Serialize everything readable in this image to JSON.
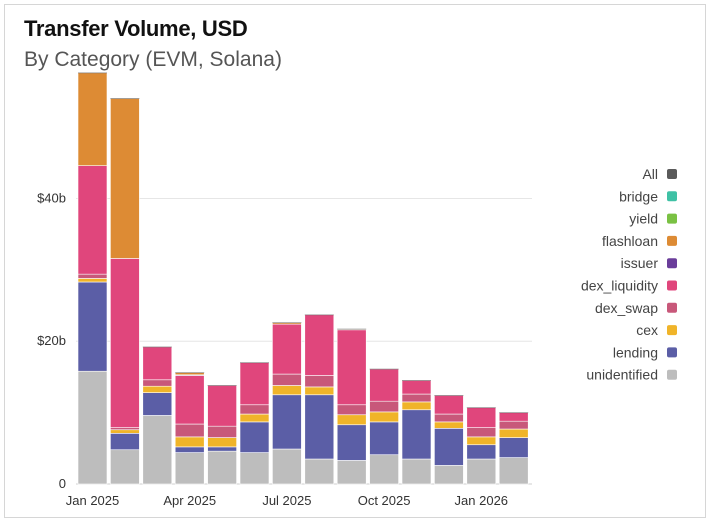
{
  "title": "Transfer Volume, USD",
  "subtitle": "By Category (EVM, Solana)",
  "chart_data": {
    "type": "bar",
    "stacked": true,
    "title": "Transfer Volume, USD",
    "subtitle": "By Category (EVM, Solana)",
    "xlabel": "",
    "ylabel": "",
    "ylim": [
      0,
      58
    ],
    "y_unit": "$ billions",
    "y_ticks": [
      {
        "value": 0,
        "label": "0"
      },
      {
        "value": 20,
        "label": "$20b"
      },
      {
        "value": 40,
        "label": "$40b"
      }
    ],
    "x_ticks": [
      {
        "index": 0,
        "label": "Jan 2025"
      },
      {
        "index": 3,
        "label": "Apr 2025"
      },
      {
        "index": 6,
        "label": "Jul 2025"
      },
      {
        "index": 9,
        "label": "Oct 2025"
      },
      {
        "index": 12,
        "label": "Jan 2026"
      }
    ],
    "categories": [
      "Jan 2025",
      "Feb 2025",
      "Mar 2025",
      "Apr 2025",
      "May 2025",
      "Jun 2025",
      "Jul 2025",
      "Aug 2025",
      "Sep 2025",
      "Oct 2025",
      "Nov 2025",
      "Dec 2025",
      "Jan 2026",
      "Feb 2026"
    ],
    "grid": true,
    "legend_position": "right",
    "series": [
      {
        "name": "unidentified",
        "color": "#bdbdbd",
        "values": [
          15.8,
          4.8,
          9.6,
          4.4,
          4.6,
          4.4,
          4.9,
          3.5,
          3.3,
          4.1,
          3.5,
          2.6,
          3.5,
          3.7
        ]
      },
      {
        "name": "lending",
        "color": "#5b5ea6",
        "values": [
          12.5,
          2.3,
          3.2,
          0.8,
          0.6,
          4.3,
          7.6,
          9.0,
          5.0,
          4.6,
          6.9,
          5.2,
          2.0,
          2.8
        ]
      },
      {
        "name": "cex",
        "color": "#f0b429",
        "values": [
          0.5,
          0.5,
          0.9,
          1.4,
          1.3,
          1.1,
          1.3,
          1.1,
          1.4,
          1.4,
          1.1,
          0.9,
          1.1,
          1.2
        ]
      },
      {
        "name": "dex_swap",
        "color": "#c8587a",
        "values": [
          0.6,
          0.3,
          0.9,
          1.8,
          1.6,
          1.3,
          1.6,
          1.6,
          1.4,
          1.5,
          1.1,
          1.1,
          1.3,
          1.1
        ]
      },
      {
        "name": "dex_liquidity",
        "color": "#e0467c",
        "values": [
          15.2,
          23.7,
          4.6,
          6.8,
          5.7,
          5.9,
          7.0,
          8.5,
          10.5,
          4.5,
          1.9,
          2.6,
          2.8,
          1.2
        ]
      },
      {
        "name": "issuer",
        "color": "#6a3d9a",
        "values": [
          0,
          0,
          0,
          0.1,
          0,
          0,
          0,
          0,
          0,
          0,
          0,
          0,
          0,
          0
        ]
      },
      {
        "name": "flashloan",
        "color": "#dd8b34",
        "values": [
          13.0,
          22.4,
          0,
          0.3,
          0,
          0,
          0.2,
          0,
          0.1,
          0,
          0,
          0,
          0,
          0
        ]
      },
      {
        "name": "yield",
        "color": "#7ac143",
        "values": [
          0,
          0,
          0,
          0,
          0,
          0,
          0,
          0,
          0,
          0,
          0,
          0,
          0,
          0
        ]
      },
      {
        "name": "bridge",
        "color": "#3fc1a5",
        "values": [
          0,
          0,
          0,
          0,
          0,
          0,
          0,
          0,
          0,
          0,
          0,
          0,
          0,
          0
        ]
      }
    ],
    "legend": [
      {
        "label": "All",
        "color": "#5a5a5a"
      },
      {
        "label": "bridge",
        "color": "#3fc1a5"
      },
      {
        "label": "yield",
        "color": "#7ac143"
      },
      {
        "label": "flashloan",
        "color": "#dd8b34"
      },
      {
        "label": "issuer",
        "color": "#6a3d9a"
      },
      {
        "label": "dex_liquidity",
        "color": "#e0467c"
      },
      {
        "label": "dex_swap",
        "color": "#c8587a"
      },
      {
        "label": "cex",
        "color": "#f0b429"
      },
      {
        "label": "lending",
        "color": "#5b5ea6"
      },
      {
        "label": "unidentified",
        "color": "#bdbdbd"
      }
    ]
  }
}
